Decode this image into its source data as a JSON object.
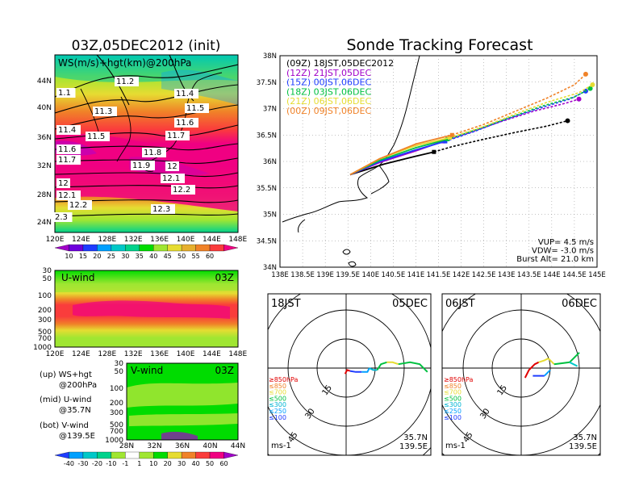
{
  "left": {
    "title": "03Z,05DEC2012 (init)",
    "map": {
      "label": "WS(m/s)+hgt(km)@200hPa",
      "lat_ticks": [
        "44N",
        "40N",
        "36N",
        "32N",
        "28N",
        "24N"
      ],
      "lon_ticks": [
        "120E",
        "124E",
        "128E",
        "132E",
        "136E",
        "140E",
        "144E",
        "148E"
      ],
      "height_labels": [
        {
          "text": "1.1"
        },
        {
          "text": "11.2"
        },
        {
          "text": "11.3"
        },
        {
          "text": "11.4"
        },
        {
          "text": "11.5"
        },
        {
          "text": "11.4"
        },
        {
          "text": "11.5"
        },
        {
          "text": "11.6"
        },
        {
          "text": "11.6"
        },
        {
          "text": "11.7"
        },
        {
          "text": "11.7"
        },
        {
          "text": "11.8"
        },
        {
          "text": "11.9"
        },
        {
          "text": "12"
        },
        {
          "text": "12.1"
        },
        {
          "text": "12"
        },
        {
          "text": "12.1"
        },
        {
          "text": "12.2"
        },
        {
          "text": "12.2"
        },
        {
          "text": "12.3"
        },
        {
          "text": "2.3"
        }
      ]
    },
    "ws_colorbar": {
      "labels": [
        "10",
        "15",
        "20",
        "25",
        "30",
        "35",
        "40",
        "45",
        "50",
        "55",
        "60"
      ],
      "colors": [
        "#a000c8",
        "#6e00dc",
        "#1e3cff",
        "#00a0ff",
        "#00c8c8",
        "#00d28c",
        "#00dc00",
        "#a0e632",
        "#e6dc32",
        "#e6af2d",
        "#f08228",
        "#fa3c3c",
        "#f00082"
      ]
    },
    "u_panel": {
      "title": "U-wind",
      "time": "03Z",
      "y_ticks": [
        "30",
        "50",
        "100",
        "200",
        "300",
        "500",
        "700",
        "1000"
      ],
      "x_ticks": [
        "120E",
        "124E",
        "128E",
        "132E",
        "136E",
        "140E",
        "144E",
        "148E"
      ]
    },
    "v_panel": {
      "title": "V-wind",
      "time": "03Z",
      "y_ticks": [
        "30",
        "50",
        "100",
        "200",
        "300",
        "500",
        "700",
        "1000"
      ],
      "x_ticks": [
        "28N",
        "32N",
        "36N",
        "40N",
        "44N"
      ]
    },
    "notes": [
      {
        "line1": "(up) WS+hgt",
        "line2": "@200hPa"
      },
      {
        "line1": "(mid) U-wind",
        "line2": "@35.7N"
      },
      {
        "line1": "(bot) V-wind",
        "line2": "@139.5E"
      }
    ],
    "wind_colorbar": {
      "labels": [
        "-40",
        "-30",
        "-20",
        "-10",
        "-1",
        "1",
        "10",
        "20",
        "30",
        "40",
        "50",
        "60"
      ],
      "colors": [
        "#1e3cff",
        "#00a0ff",
        "#00c8c8",
        "#00d28c",
        "#a0e632",
        "#ffffff",
        "#a0e632",
        "#00dc00",
        "#e6dc32",
        "#f08228",
        "#fa3c3c",
        "#f00082",
        "#a000c8"
      ]
    }
  },
  "chart_data": [
    {
      "type": "line",
      "title": "Sonde Tracking Forecast",
      "xlim": [
        138.0,
        145.0
      ],
      "ylim": [
        34.0,
        38.0
      ],
      "x_ticks": [
        "138E",
        "138.5E",
        "139E",
        "139.5E",
        "140E",
        "140.5E",
        "141E",
        "141.5E",
        "142E",
        "142.5E",
        "143E",
        "143.5E",
        "144E",
        "144.5E",
        "145E"
      ],
      "y_ticks": [
        "38N",
        "37.5N",
        "37N",
        "36.5N",
        "36N",
        "35.5N",
        "35N",
        "34.5N",
        "34N"
      ],
      "grid": true,
      "legend_position": "top-left",
      "series": [
        {
          "name": "(09Z) 18JST,05DEC2012",
          "color": "#000000",
          "x": [
            139.55,
            140.3,
            141.0,
            141.4,
            141.8,
            142.5,
            143.2,
            143.9,
            144.35
          ],
          "y": [
            35.75,
            35.95,
            36.1,
            36.18,
            36.28,
            36.42,
            36.55,
            36.67,
            36.77
          ]
        },
        {
          "name": "(12Z) 21JST,05DEC",
          "color": "#a000c8",
          "x": [
            139.55,
            140.2,
            141.0,
            141.6,
            142.2,
            142.9,
            143.6,
            144.3,
            144.6
          ],
          "y": [
            35.75,
            35.98,
            36.2,
            36.38,
            36.55,
            36.76,
            36.95,
            37.1,
            37.18
          ]
        },
        {
          "name": "(15Z) 00JST,06DEC",
          "color": "#1e3cff",
          "x": [
            139.55,
            140.2,
            141.0,
            141.65,
            142.3,
            143.0,
            143.7,
            144.4,
            144.75
          ],
          "y": [
            35.75,
            36.0,
            36.22,
            36.38,
            36.57,
            36.8,
            37.0,
            37.18,
            37.33
          ]
        },
        {
          "name": "(18Z) 03JST,06DEC",
          "color": "#00c040",
          "x": [
            139.55,
            140.2,
            141.0,
            141.7,
            142.4,
            143.1,
            143.8,
            144.5,
            144.85
          ],
          "y": [
            35.75,
            36.02,
            36.26,
            36.42,
            36.62,
            36.84,
            37.05,
            37.22,
            37.38
          ]
        },
        {
          "name": "(21Z) 06JST,06DEC",
          "color": "#e6dc32",
          "x": [
            139.55,
            140.2,
            141.0,
            141.75,
            142.5,
            143.2,
            143.9,
            144.6,
            144.9
          ],
          "y": [
            35.75,
            36.05,
            36.3,
            36.45,
            36.66,
            36.9,
            37.12,
            37.3,
            37.45
          ]
        },
        {
          "name": "(00Z) 09JST,06DEC",
          "color": "#f08228",
          "x": [
            139.55,
            140.2,
            141.0,
            141.8,
            142.5,
            143.2,
            143.9,
            144.5,
            144.75
          ],
          "y": [
            35.75,
            36.05,
            36.33,
            36.5,
            36.7,
            36.95,
            37.2,
            37.45,
            37.65
          ]
        }
      ],
      "params": [
        "VUP= 4.5 m/s",
        "VDW= -3.0 m/s",
        "Burst Alt= 21.0 km"
      ]
    },
    {
      "type": "scatter",
      "subtype": "hodograph",
      "time_left": "18JST",
      "date": "05DEC",
      "unit": "ms-1",
      "location_line1": "35.7N",
      "location_line2": "139.5E",
      "ring_labels": [
        "15",
        "30",
        "45",
        "60"
      ],
      "legend": [
        {
          "label": "≥850hPa",
          "color": "#e00000"
        },
        {
          "label": "≤850",
          "color": "#f08228"
        },
        {
          "label": "≤700",
          "color": "#e6dc32"
        },
        {
          "label": "≤500",
          "color": "#00c040"
        },
        {
          "label": "≤300",
          "color": "#00b4d2"
        },
        {
          "label": "≤250",
          "color": "#00a0ff"
        },
        {
          "label": "≤100",
          "color": "#1e3cff"
        }
      ],
      "segments": [
        {
          "color": "#e00000",
          "points": [
            [
              -0.5,
              -3
            ],
            [
              0.5,
              -1
            ],
            [
              2,
              -1.5
            ]
          ]
        },
        {
          "color": "#1e3cff",
          "points": [
            [
              2,
              -1.5
            ],
            [
              5,
              -2
            ],
            [
              8,
              -2
            ]
          ]
        },
        {
          "color": "#00a0ff",
          "points": [
            [
              8,
              -2
            ],
            [
              11,
              -2
            ],
            [
              12,
              0
            ]
          ]
        },
        {
          "color": "#00b4d2",
          "points": [
            [
              12,
              0
            ],
            [
              14,
              -1
            ],
            [
              16,
              -1
            ]
          ]
        },
        {
          "color": "#00c040",
          "points": [
            [
              16,
              -1
            ],
            [
              18,
              2
            ],
            [
              21,
              3
            ]
          ]
        },
        {
          "color": "#e6dc32",
          "points": [
            [
              21,
              3
            ],
            [
              24,
              3
            ],
            [
              27,
              2
            ]
          ]
        },
        {
          "color": "#00c040",
          "points": [
            [
              27,
              2
            ],
            [
              33,
              3
            ],
            [
              38,
              2
            ],
            [
              42,
              -2
            ]
          ]
        }
      ]
    },
    {
      "type": "scatter",
      "subtype": "hodograph",
      "time_left": "06JST",
      "date": "06DEC",
      "unit": "ms-1",
      "location_line1": "35.7N",
      "location_line2": "139.5E",
      "ring_labels": [
        "15",
        "30",
        "45",
        "60"
      ],
      "legend": [
        {
          "label": "≥850hPa",
          "color": "#e00000"
        },
        {
          "label": "≤850",
          "color": "#f08228"
        },
        {
          "label": "≤700",
          "color": "#e6dc32"
        },
        {
          "label": "≤500",
          "color": "#00c040"
        },
        {
          "label": "≤300",
          "color": "#00b4d2"
        },
        {
          "label": "≤250",
          "color": "#00a0ff"
        },
        {
          "label": "≤100",
          "color": "#1e3cff"
        }
      ],
      "segments": [
        {
          "color": "#e00000",
          "points": [
            [
              2,
              -5
            ],
            [
              4,
              -1
            ],
            [
              7,
              2
            ],
            [
              9,
              3
            ]
          ]
        },
        {
          "color": "#e6dc32",
          "points": [
            [
              9,
              3
            ],
            [
              12,
              4
            ],
            [
              14,
              5
            ]
          ]
        },
        {
          "color": "#1e3cff",
          "points": [
            [
              6,
              -4
            ],
            [
              9,
              -4
            ],
            [
              12,
              -4
            ]
          ]
        },
        {
          "color": "#00a0ff",
          "points": [
            [
              12,
              -4
            ],
            [
              15,
              -1
            ]
          ]
        },
        {
          "color": "#e6dc32",
          "points": [
            [
              14,
              5
            ],
            [
              17,
              2
            ]
          ]
        },
        {
          "color": "#00c040",
          "points": [
            [
              17,
              2
            ],
            [
              25,
              3
            ],
            [
              30,
              8
            ]
          ]
        },
        {
          "color": "#00c8c8",
          "points": [
            [
              25,
              3
            ],
            [
              29,
              1
            ]
          ]
        }
      ]
    }
  ]
}
